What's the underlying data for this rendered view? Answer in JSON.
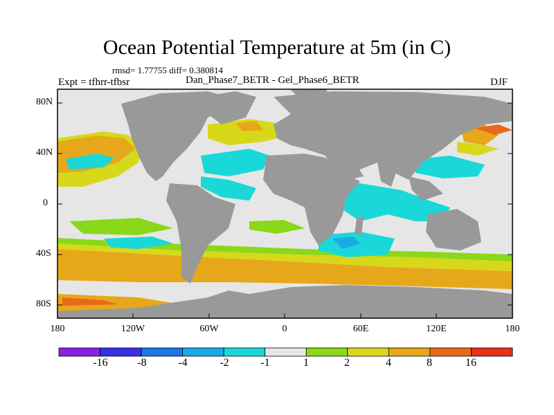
{
  "title": "Ocean Potential Temperature at 5m (in C)",
  "stats": "rmsd= 1.77755 diff= 0.380814",
  "experiment": "Expt = tfhrr-tfbsr",
  "difference_label": "Dan_Phase7_BETR - Gel_Phase6_BETR",
  "season": "DJF",
  "lat_ticks": [
    "80N",
    "40N",
    "0",
    "40S",
    "80S"
  ],
  "lon_ticks": [
    "180",
    "120W",
    "60W",
    "0",
    "60E",
    "120E",
    "180"
  ],
  "colorbar": {
    "labels": [
      "-16",
      "-8",
      "-4",
      "-2",
      "-1",
      "1",
      "2",
      "4",
      "8",
      "16"
    ],
    "colors": [
      "#8a1fe6",
      "#3a2ee6",
      "#1a78e6",
      "#1aa8e6",
      "#1ad8d8",
      "#e6e6e6",
      "#8ad81a",
      "#d8d81a",
      "#e6a81a",
      "#e66a1a",
      "#e6321a"
    ]
  },
  "colors": {
    "land": "#999999",
    "ocean_neutral": "#e6e6e6",
    "cyan": "#1ad8d8",
    "green": "#8ad81a",
    "yellow": "#d8d81a",
    "orange": "#e6a81a",
    "dark_orange": "#e66a1a"
  }
}
